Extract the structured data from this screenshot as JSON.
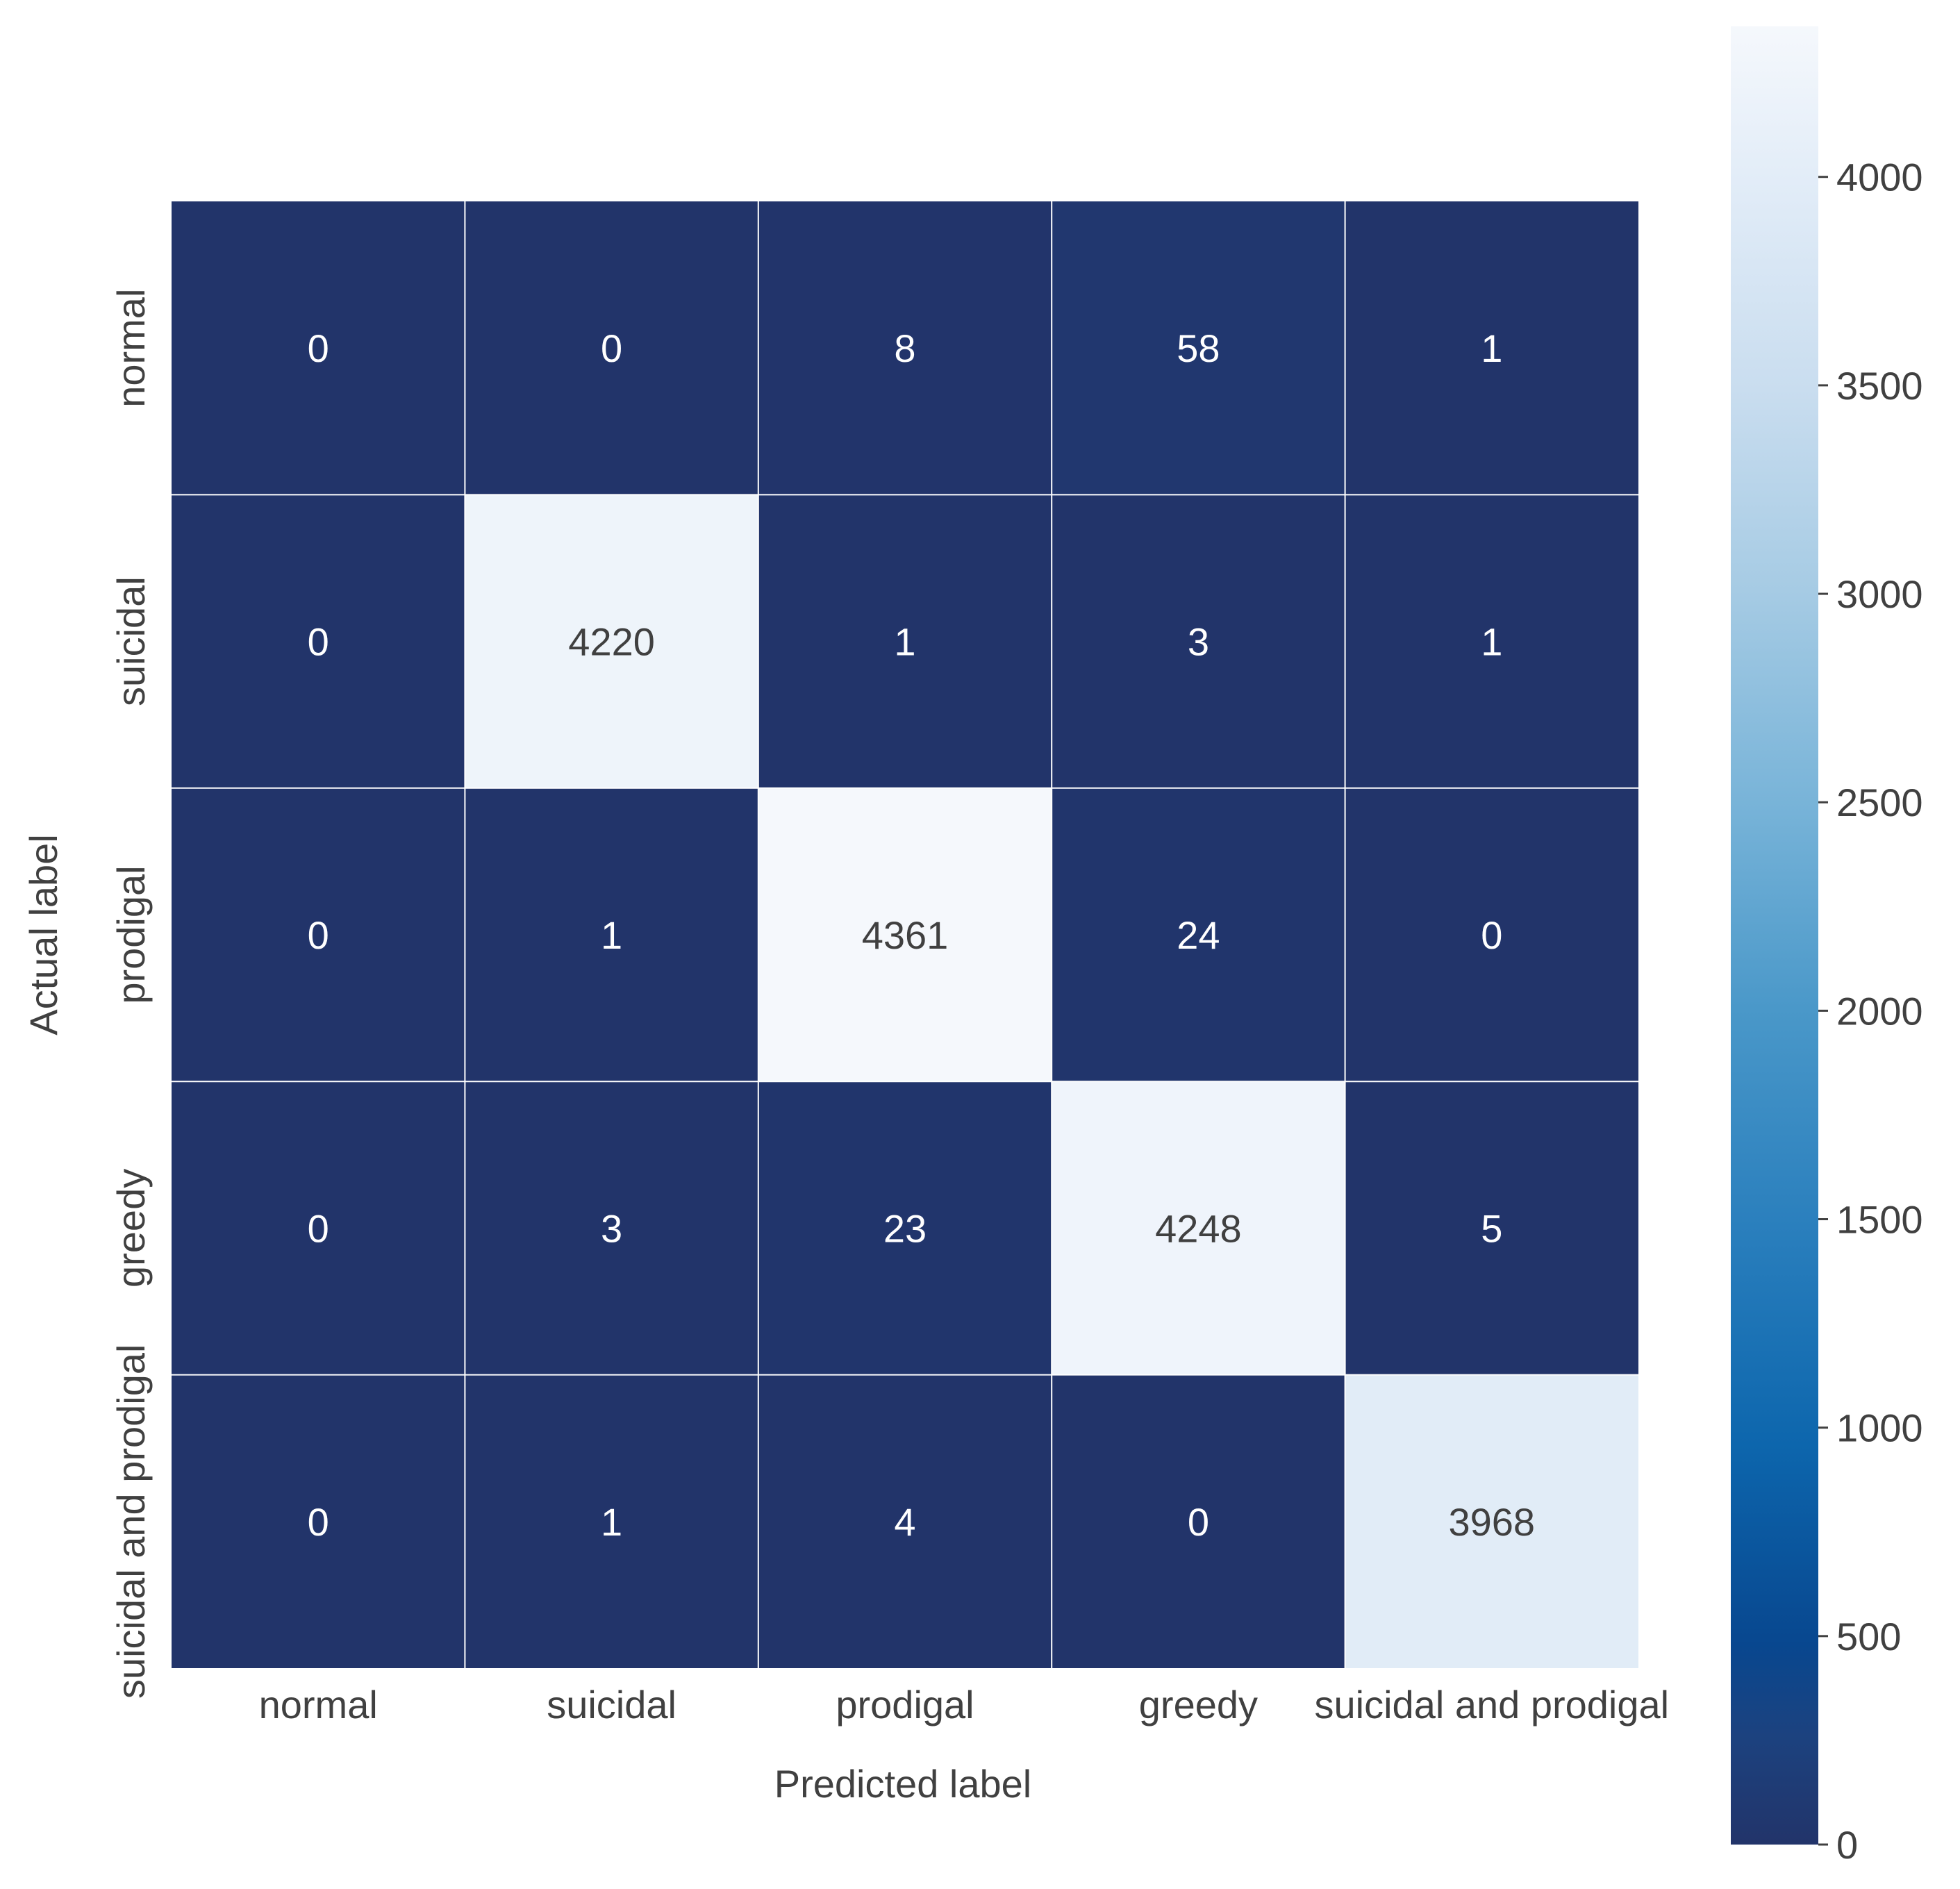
{
  "chart_data": {
    "type": "heatmap",
    "title": "",
    "xlabel": "Predicted label",
    "ylabel": "Actual label",
    "x_categories": [
      "normal",
      "suicidal",
      "prodigal",
      "greedy",
      "suicidal and prodigal"
    ],
    "y_categories": [
      "normal",
      "suicidal",
      "prodigal",
      "greedy",
      "suicidal and prodigal"
    ],
    "values": [
      [
        0,
        0,
        8,
        58,
        1
      ],
      [
        0,
        4220,
        1,
        3,
        1
      ],
      [
        0,
        1,
        4361,
        24,
        0
      ],
      [
        0,
        3,
        23,
        4248,
        5
      ],
      [
        0,
        1,
        4,
        0,
        3968
      ]
    ],
    "colorbar": {
      "min": 0,
      "max": 4361,
      "ticks": [
        0,
        500,
        1000,
        1500,
        2000,
        2500,
        3000,
        3500,
        4000
      ],
      "tick_labels": [
        "0",
        "500",
        "1000",
        "1500",
        "2000",
        "2500",
        "3000",
        "3500",
        "4000"
      ],
      "low_color": "#22346a",
      "high_color": "#f5f8fb"
    },
    "text_color_dark_cells": "#ffffff",
    "text_color_light_cells": "#404040"
  }
}
